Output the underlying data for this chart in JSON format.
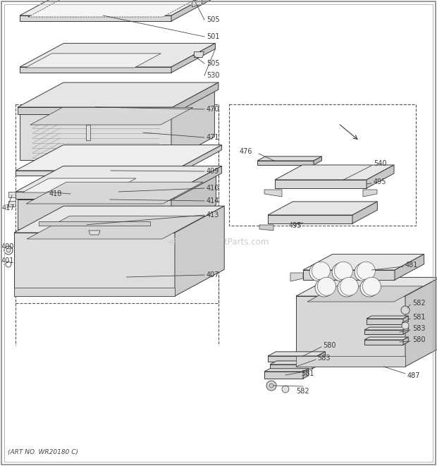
{
  "background_color": "#ffffff",
  "art_no_text": "(ART NO. WR20180 C)",
  "watermark": "eReplacementParts.com",
  "line_color": "#3a3a3a",
  "light_fill": "#f2f2f2",
  "mid_fill": "#e0e0e0",
  "dark_fill": "#c8c8c8",
  "label_fontsize": 7.5,
  "border_color": "#999999"
}
